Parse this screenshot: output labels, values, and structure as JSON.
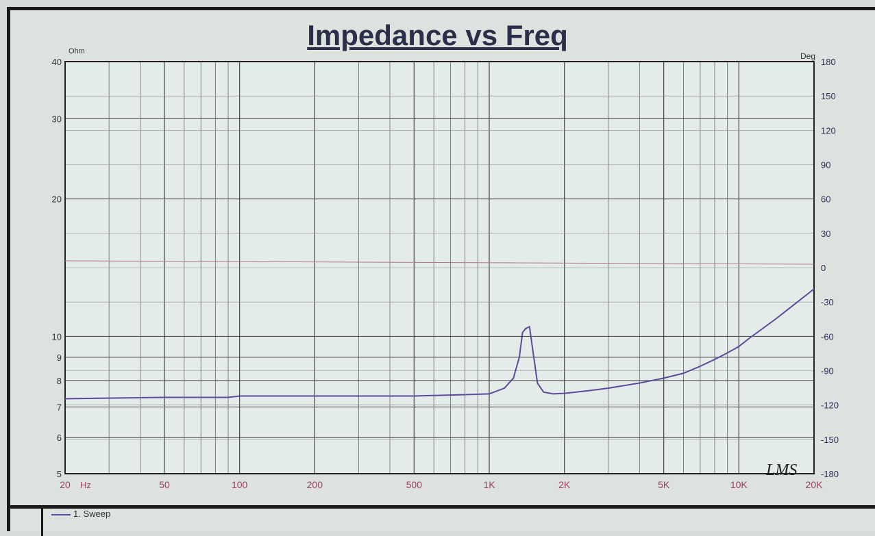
{
  "chart_data": {
    "type": "line",
    "title": "Impedance vs Freq",
    "y_left_unit": "Ohm",
    "y_right_unit": "Deg",
    "x_unit": "Hz",
    "x_scale": "log",
    "y_scale": "log",
    "xlim": [
      20,
      20000
    ],
    "ylim": [
      5,
      40
    ],
    "y2lim": [
      -180,
      180
    ],
    "grid": true,
    "x_ticks": [
      {
        "v": 20,
        "label": "20"
      },
      {
        "v": 50,
        "label": "50"
      },
      {
        "v": 100,
        "label": "100"
      },
      {
        "v": 200,
        "label": "200"
      },
      {
        "v": 500,
        "label": "500"
      },
      {
        "v": 1000,
        "label": "1K"
      },
      {
        "v": 2000,
        "label": "2K"
      },
      {
        "v": 5000,
        "label": "5K"
      },
      {
        "v": 10000,
        "label": "10K"
      },
      {
        "v": 20000,
        "label": "20K"
      }
    ],
    "y_ticks": [
      5,
      6,
      7,
      8,
      9,
      10,
      20,
      30,
      40
    ],
    "y2_ticks": [
      180,
      150,
      120,
      90,
      60,
      30,
      0,
      -30,
      -60,
      -90,
      -120,
      -150,
      -180
    ],
    "series": [
      {
        "name": "1. Sweep",
        "color": "#5a4a9a",
        "axis": "left",
        "x": [
          20,
          50,
          90,
          100,
          200,
          500,
          800,
          1000,
          1150,
          1250,
          1320,
          1360,
          1400,
          1450,
          1500,
          1560,
          1650,
          1800,
          2000,
          2500,
          3000,
          4000,
          5000,
          6000,
          7000,
          8000,
          9000,
          10000,
          11000,
          14000,
          20000
        ],
        "y": [
          7.3,
          7.35,
          7.35,
          7.4,
          7.4,
          7.4,
          7.45,
          7.48,
          7.7,
          8.1,
          9.0,
          10.2,
          10.4,
          10.5,
          9.2,
          7.9,
          7.55,
          7.48,
          7.5,
          7.6,
          7.7,
          7.9,
          8.1,
          8.3,
          8.6,
          8.9,
          9.2,
          9.5,
          9.9,
          10.9,
          12.7
        ]
      },
      {
        "axis": "right",
        "color": "#b07090",
        "x": [
          20,
          20000
        ],
        "y": [
          6,
          3
        ]
      }
    ],
    "legend": [
      {
        "label": "1. Sweep",
        "placement": "bottom-left"
      }
    ],
    "annotation": "LMS"
  }
}
